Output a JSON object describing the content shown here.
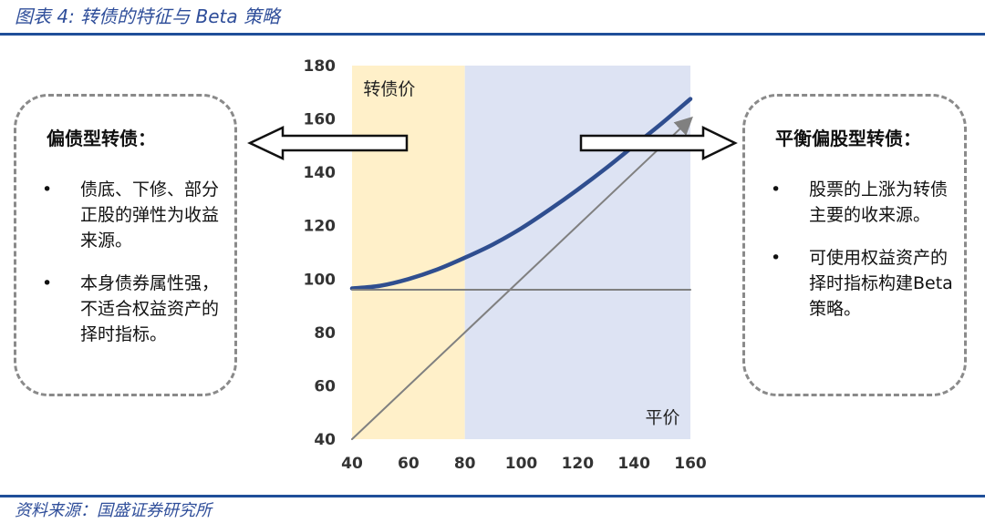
{
  "figure": {
    "title": "图表 4:  转债的特征与 Beta 策略",
    "source": "资料来源：国盛证券研究所"
  },
  "left_box": {
    "title": "偏债型转债：",
    "bullets": [
      "债底、下修、部分正股的弹性为收益来源。",
      "本身债券属性强，不适合权益资产的择时指标。"
    ]
  },
  "right_box": {
    "title": "平衡偏股型转债：",
    "bullets": [
      "股票的上涨为转债主要的收来源。",
      "可使用权益资产的择时指标构建Beta策略。"
    ]
  },
  "bullet_char": "•",
  "colors": {
    "accent": "#1f4e99",
    "bond_region": "#fff0c9",
    "equity_region": "#dde3f3",
    "curve": "#2f4e8f",
    "reference_lines": "#808080"
  },
  "chart_data": {
    "type": "line",
    "xlim": [
      40,
      160
    ],
    "ylim": [
      40,
      180
    ],
    "x_ticks": [
      40,
      60,
      80,
      100,
      120,
      140,
      160
    ],
    "y_ticks": [
      40,
      60,
      80,
      100,
      120,
      140,
      160,
      180
    ],
    "regions": [
      {
        "x_from": 40,
        "x_to": 80,
        "color": "#fff0c9"
      },
      {
        "x_from": 80,
        "x_to": 160,
        "color": "#dde3f3"
      }
    ],
    "series": [
      {
        "x": [
          40,
          50,
          60,
          70,
          80,
          90,
          100,
          110,
          120,
          130,
          140,
          150,
          160
        ],
        "y": [
          96.5,
          97.5,
          100,
          103.5,
          108,
          113,
          119,
          126,
          133.5,
          141.5,
          150,
          158.5,
          167.5
        ]
      },
      {
        "x": [
          40,
          160
        ],
        "y": [
          96,
          96
        ]
      },
      {
        "x": [
          40,
          160
        ],
        "y": [
          40,
          160
        ]
      }
    ],
    "annotations": [
      {
        "text": "转债价",
        "x": 44,
        "y": 169
      },
      {
        "text": "平价",
        "x": 144,
        "y": 46
      }
    ],
    "grid": false
  }
}
